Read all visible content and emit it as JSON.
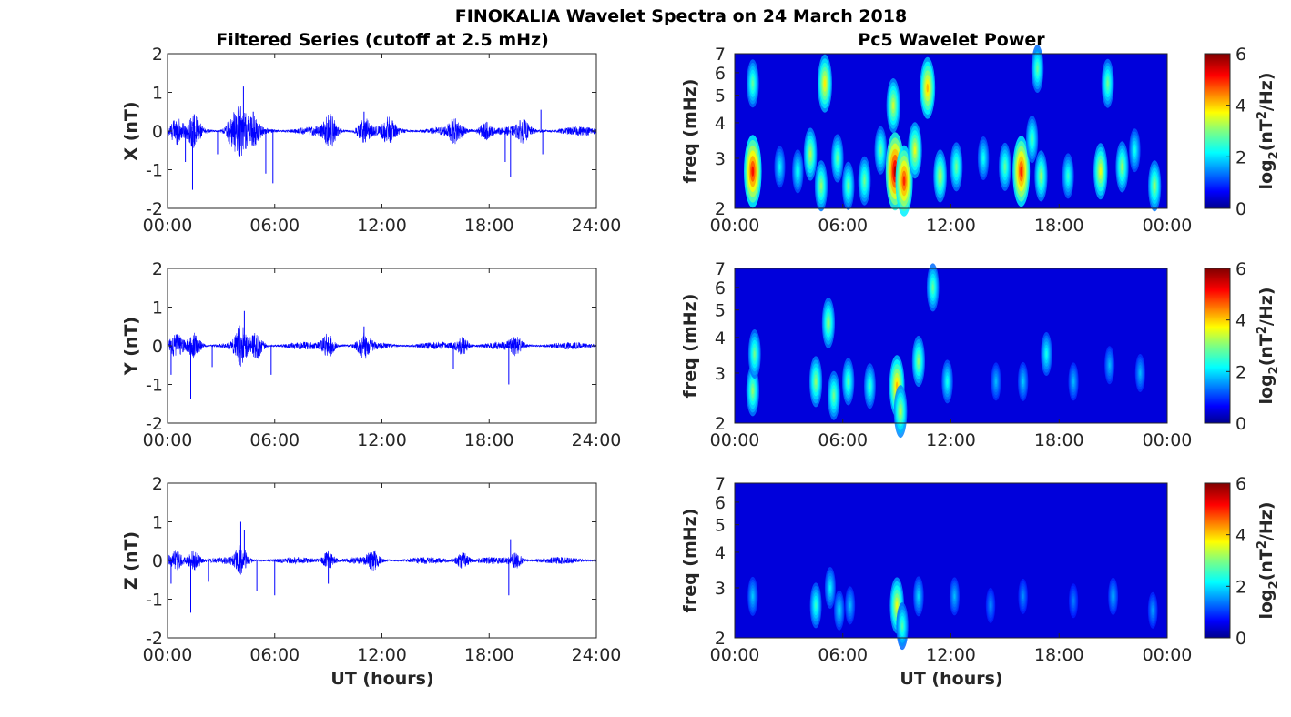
{
  "figure": {
    "title": "FINOKALIA Wavelet Spectra on 24 March 2018",
    "left_column_title": "Filtered Series (cutoff at 2.5 mHz)",
    "right_column_title": "Pc5 Wavelet Power",
    "xlabel": "UT (hours)"
  },
  "chart_data": [
    {
      "type": "line",
      "component": "X",
      "ylabel": "X (nT)",
      "xlim": [
        0,
        24
      ],
      "ylim": [
        -2,
        2
      ],
      "xticks": [
        "00:00",
        "06:00",
        "12:00",
        "18:00",
        "24:00"
      ],
      "yticks": [
        "2",
        "1",
        "0",
        "-1",
        "-2"
      ],
      "color": "#0000ff",
      "baseline_amplitude_nT": 0.12,
      "bursts": [
        {
          "t": 0.5,
          "amp": 0.25
        },
        {
          "t": 1.5,
          "amp": 0.35
        },
        {
          "t": 3.6,
          "amp": 0.3
        },
        {
          "t": 4.1,
          "amp": 0.55
        },
        {
          "t": 4.8,
          "amp": 0.3
        },
        {
          "t": 9.1,
          "amp": 0.4
        },
        {
          "t": 11.0,
          "amp": 0.3
        },
        {
          "t": 12.4,
          "amp": 0.28
        },
        {
          "t": 16.1,
          "amp": 0.25
        },
        {
          "t": 17.8,
          "amp": 0.22
        },
        {
          "t": 19.9,
          "amp": 0.22
        }
      ],
      "spikes": [
        {
          "t": 1.4,
          "v": -1.52
        },
        {
          "t": 1.0,
          "v": -0.8
        },
        {
          "t": 4.0,
          "v": 1.18
        },
        {
          "t": 4.25,
          "v": 1.15
        },
        {
          "t": 4.8,
          "v": 0.5
        },
        {
          "t": 5.9,
          "v": -1.35
        },
        {
          "t": 5.5,
          "v": -1.1
        },
        {
          "t": 11.0,
          "v": 0.5
        },
        {
          "t": 18.9,
          "v": -0.8
        },
        {
          "t": 19.2,
          "v": -1.2
        },
        {
          "t": 20.9,
          "v": 0.55
        },
        {
          "t": 21.0,
          "v": -0.6
        },
        {
          "t": 2.8,
          "v": -0.6
        }
      ]
    },
    {
      "type": "line",
      "component": "Y",
      "ylabel": "Y (nT)",
      "xlim": [
        0,
        24
      ],
      "ylim": [
        -2,
        2
      ],
      "xticks": [
        "00:00",
        "06:00",
        "12:00",
        "18:00",
        "24:00"
      ],
      "yticks": [
        "2",
        "1",
        "0",
        "-1",
        "-2"
      ],
      "color": "#0000ff",
      "baseline_amplitude_nT": 0.1,
      "bursts": [
        {
          "t": 0.5,
          "amp": 0.22
        },
        {
          "t": 1.5,
          "amp": 0.3
        },
        {
          "t": 4.1,
          "amp": 0.45
        },
        {
          "t": 5.0,
          "amp": 0.3
        },
        {
          "t": 9.0,
          "amp": 0.3
        },
        {
          "t": 11.0,
          "amp": 0.28
        },
        {
          "t": 16.5,
          "amp": 0.22
        },
        {
          "t": 19.5,
          "amp": 0.2
        }
      ],
      "spikes": [
        {
          "t": 1.3,
          "v": -1.38
        },
        {
          "t": 0.2,
          "v": -0.75
        },
        {
          "t": 4.0,
          "v": 1.15
        },
        {
          "t": 4.3,
          "v": 0.9
        },
        {
          "t": 5.8,
          "v": -0.75
        },
        {
          "t": 11.0,
          "v": 0.5
        },
        {
          "t": 19.1,
          "v": -1.0
        },
        {
          "t": 16.0,
          "v": -0.6
        },
        {
          "t": 2.5,
          "v": -0.55
        }
      ]
    },
    {
      "type": "line",
      "component": "Z",
      "ylabel": "Z (nT)",
      "xlim": [
        0,
        24
      ],
      "ylim": [
        -2,
        2
      ],
      "xticks": [
        "00:00",
        "06:00",
        "12:00",
        "18:00",
        "24:00"
      ],
      "yticks": [
        "2",
        "1",
        "0",
        "-1",
        "-2"
      ],
      "color": "#0000ff",
      "baseline_amplitude_nT": 0.09,
      "bursts": [
        {
          "t": 0.5,
          "amp": 0.2
        },
        {
          "t": 1.5,
          "amp": 0.25
        },
        {
          "t": 4.1,
          "amp": 0.35
        },
        {
          "t": 9.0,
          "amp": 0.22
        },
        {
          "t": 11.5,
          "amp": 0.22
        },
        {
          "t": 16.5,
          "amp": 0.2
        },
        {
          "t": 19.5,
          "amp": 0.18
        }
      ],
      "spikes": [
        {
          "t": 1.3,
          "v": -1.35
        },
        {
          "t": 0.2,
          "v": -0.6
        },
        {
          "t": 4.1,
          "v": 1.0
        },
        {
          "t": 4.3,
          "v": 0.8
        },
        {
          "t": 5.0,
          "v": -0.8
        },
        {
          "t": 6.0,
          "v": -0.9
        },
        {
          "t": 9.0,
          "v": -0.6
        },
        {
          "t": 19.1,
          "v": -0.9
        },
        {
          "t": 19.2,
          "v": 0.55
        },
        {
          "t": 2.3,
          "v": -0.55
        }
      ]
    },
    {
      "type": "heatmap",
      "component": "X",
      "ylabel": "freq (mHz)",
      "colorbar_label": "log2(nT2/Hz)",
      "xlim": [
        0,
        24
      ],
      "ylim": [
        2,
        7
      ],
      "yscale": "log",
      "clim": [
        0,
        6
      ],
      "colormap": "jet",
      "xticks": [
        "00:00",
        "06:00",
        "12:00",
        "18:00",
        "00:00"
      ],
      "yticks": [
        "7",
        "6",
        "5",
        "4",
        "3",
        "2"
      ],
      "colorbar_ticks": [
        "6",
        "4",
        "2",
        "0"
      ],
      "blobs": [
        {
          "t": 1.0,
          "f": 2.7,
          "power": 5.2
        },
        {
          "t": 1.0,
          "f": 5.5,
          "power": 2.5
        },
        {
          "t": 2.5,
          "f": 2.8,
          "power": 1.8
        },
        {
          "t": 3.5,
          "f": 2.7,
          "power": 2.0
        },
        {
          "t": 4.2,
          "f": 3.1,
          "power": 3.0
        },
        {
          "t": 4.8,
          "f": 2.4,
          "power": 2.8
        },
        {
          "t": 5.0,
          "f": 5.5,
          "power": 3.6
        },
        {
          "t": 5.7,
          "f": 3.0,
          "power": 2.5
        },
        {
          "t": 6.3,
          "f": 2.4,
          "power": 2.5
        },
        {
          "t": 7.2,
          "f": 2.5,
          "power": 2.6
        },
        {
          "t": 8.1,
          "f": 3.2,
          "power": 2.5
        },
        {
          "t": 8.9,
          "f": 2.7,
          "power": 5.8
        },
        {
          "t": 8.8,
          "f": 4.6,
          "power": 3.2
        },
        {
          "t": 9.4,
          "f": 2.5,
          "power": 5.0
        },
        {
          "t": 10.0,
          "f": 3.2,
          "power": 3.4
        },
        {
          "t": 10.7,
          "f": 5.3,
          "power": 4.0
        },
        {
          "t": 11.4,
          "f": 2.6,
          "power": 3.0
        },
        {
          "t": 12.3,
          "f": 2.8,
          "power": 2.6
        },
        {
          "t": 13.8,
          "f": 3.0,
          "power": 2.0
        },
        {
          "t": 15.0,
          "f": 2.8,
          "power": 2.5
        },
        {
          "t": 15.9,
          "f": 2.7,
          "power": 5.0
        },
        {
          "t": 16.5,
          "f": 3.5,
          "power": 2.4
        },
        {
          "t": 17.0,
          "f": 2.6,
          "power": 2.8
        },
        {
          "t": 16.8,
          "f": 6.2,
          "power": 2.5
        },
        {
          "t": 18.5,
          "f": 2.6,
          "power": 2.2
        },
        {
          "t": 20.3,
          "f": 2.7,
          "power": 3.4
        },
        {
          "t": 20.7,
          "f": 5.5,
          "power": 2.6
        },
        {
          "t": 21.5,
          "f": 2.8,
          "power": 2.8
        },
        {
          "t": 22.2,
          "f": 3.2,
          "power": 2.0
        },
        {
          "t": 23.3,
          "f": 2.4,
          "power": 2.8
        }
      ]
    },
    {
      "type": "heatmap",
      "component": "Y",
      "ylabel": "freq (mHz)",
      "colorbar_label": "log2(nT2/Hz)",
      "xlim": [
        0,
        24
      ],
      "ylim": [
        2,
        7
      ],
      "yscale": "log",
      "clim": [
        0,
        6
      ],
      "colormap": "jet",
      "xticks": [
        "00:00",
        "06:00",
        "12:00",
        "18:00",
        "00:00"
      ],
      "yticks": [
        "7",
        "6",
        "5",
        "4",
        "3",
        "2"
      ],
      "colorbar_ticks": [
        "6",
        "4",
        "2",
        "0"
      ],
      "blobs": [
        {
          "t": 1.0,
          "f": 2.6,
          "power": 2.8
        },
        {
          "t": 1.1,
          "f": 3.5,
          "power": 2.6
        },
        {
          "t": 4.5,
          "f": 2.8,
          "power": 2.8
        },
        {
          "t": 5.2,
          "f": 4.5,
          "power": 2.8
        },
        {
          "t": 5.5,
          "f": 2.5,
          "power": 2.6
        },
        {
          "t": 6.3,
          "f": 2.8,
          "power": 2.4
        },
        {
          "t": 7.5,
          "f": 2.7,
          "power": 2.2
        },
        {
          "t": 9.0,
          "f": 2.7,
          "power": 4.0
        },
        {
          "t": 9.2,
          "f": 2.2,
          "power": 3.0
        },
        {
          "t": 10.2,
          "f": 3.3,
          "power": 2.8
        },
        {
          "t": 11.0,
          "f": 6.0,
          "power": 2.5
        },
        {
          "t": 11.8,
          "f": 2.8,
          "power": 2.0
        },
        {
          "t": 14.5,
          "f": 2.8,
          "power": 1.4
        },
        {
          "t": 16.0,
          "f": 2.8,
          "power": 1.5
        },
        {
          "t": 17.3,
          "f": 3.5,
          "power": 2.0
        },
        {
          "t": 18.8,
          "f": 2.8,
          "power": 1.4
        },
        {
          "t": 20.8,
          "f": 3.2,
          "power": 1.4
        },
        {
          "t": 22.5,
          "f": 3.0,
          "power": 1.4
        }
      ]
    },
    {
      "type": "heatmap",
      "component": "Z",
      "ylabel": "freq (mHz)",
      "colorbar_label": "log2(nT2/Hz)",
      "xlim": [
        0,
        24
      ],
      "ylim": [
        2,
        7
      ],
      "yscale": "log",
      "clim": [
        0,
        6
      ],
      "colormap": "jet",
      "xticks": [
        "00:00",
        "06:00",
        "12:00",
        "18:00",
        "00:00"
      ],
      "yticks": [
        "7",
        "6",
        "5",
        "4",
        "3",
        "2"
      ],
      "colorbar_ticks": [
        "6",
        "4",
        "2",
        "0"
      ],
      "blobs": [
        {
          "t": 1.0,
          "f": 2.8,
          "power": 1.5
        },
        {
          "t": 4.5,
          "f": 2.6,
          "power": 2.2
        },
        {
          "t": 5.3,
          "f": 3.0,
          "power": 1.8
        },
        {
          "t": 5.8,
          "f": 2.5,
          "power": 1.6
        },
        {
          "t": 6.4,
          "f": 2.6,
          "power": 1.4
        },
        {
          "t": 9.0,
          "f": 2.6,
          "power": 3.4
        },
        {
          "t": 9.3,
          "f": 2.2,
          "power": 2.4
        },
        {
          "t": 10.2,
          "f": 2.8,
          "power": 1.6
        },
        {
          "t": 12.2,
          "f": 2.8,
          "power": 1.4
        },
        {
          "t": 14.2,
          "f": 2.6,
          "power": 1.1
        },
        {
          "t": 16.0,
          "f": 2.8,
          "power": 1.1
        },
        {
          "t": 18.8,
          "f": 2.7,
          "power": 1.0
        },
        {
          "t": 21.0,
          "f": 2.8,
          "power": 1.3
        },
        {
          "t": 23.2,
          "f": 2.5,
          "power": 1.2
        }
      ]
    }
  ]
}
